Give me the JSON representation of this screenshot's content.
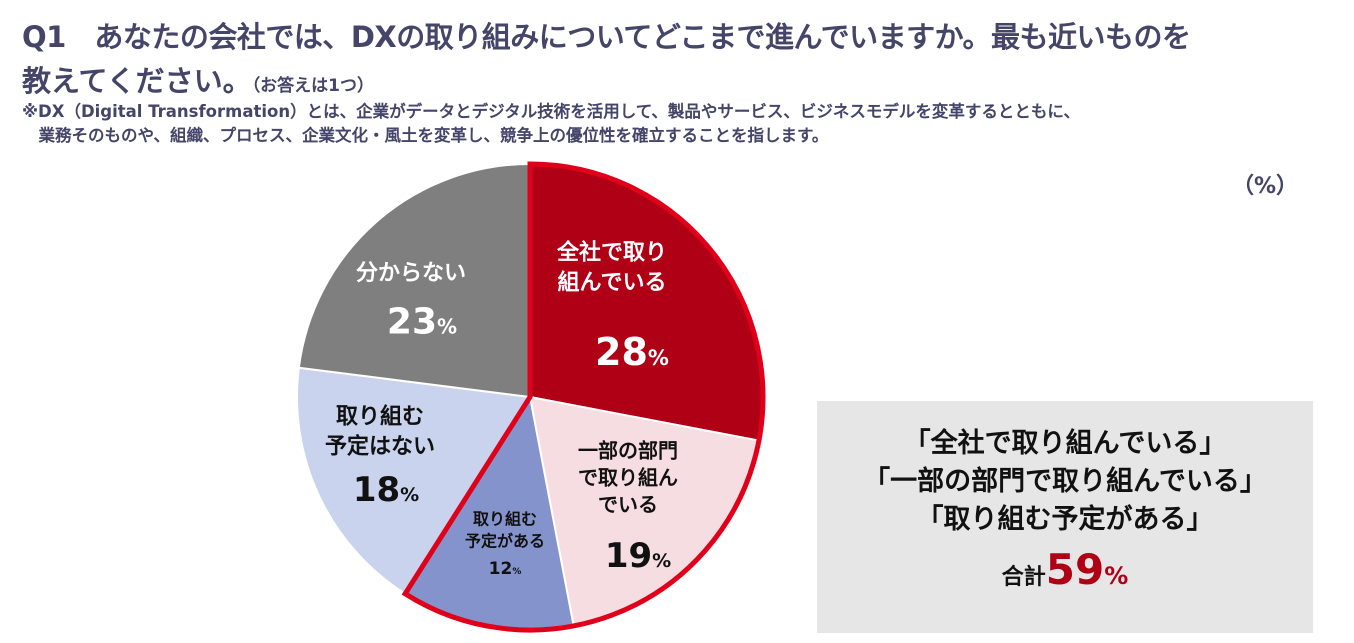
{
  "header": {
    "title_line1": "Q1　あなたの会社では、DXの取り組みについてどこまで進んでいますか。最も近いものを",
    "title_line2": "教えてください。",
    "title_note": "（お答えは1つ）",
    "definition_line1": "※DX（Digital Transformation）とは、企業がデータとデジタル技術を活用して、製品やサービス、ビジネスモデルを変革するとともに、",
    "definition_line2": "　業務そのものや、組織、プロセス、企業文化・風土を変革し、競争上の優位性を確立することを指します。",
    "unit": "（%）"
  },
  "chart_data": {
    "type": "pie",
    "unit": "%",
    "start": "top, clockwise",
    "slices": [
      {
        "label": "全社で取り組んでいる",
        "display": "全社で取り\n組んでいる",
        "value": 28,
        "color": "#b00016",
        "text_color": "#ffffff"
      },
      {
        "label": "一部の部門で取り組んでいる",
        "display": "一部の部門\nで取り組ん\nでいる",
        "value": 19,
        "color": "#f5dde1",
        "text_color": "#111111"
      },
      {
        "label": "取り組む予定がある",
        "display": "取り組む\n予定がある",
        "value": 12,
        "color": "#8593cc",
        "text_color": "#111111"
      },
      {
        "label": "取り組む予定はない",
        "display": "取り組む\n予定はない",
        "value": 18,
        "color": "#c9d3ee",
        "text_color": "#111111"
      },
      {
        "label": "分からない",
        "display": "分からない",
        "value": 23,
        "color": "#7f7f7f",
        "text_color": "#ffffff"
      }
    ],
    "highlight_outline_color": "#e0001a",
    "highlight_slices": [
      0,
      1,
      2
    ]
  },
  "summary": {
    "lines": [
      "「全社で取り組んでいる」",
      "「一部の部門で取り組んでいる」",
      "「取り組む予定がある」"
    ],
    "total_label": "合計",
    "total_value": "59",
    "total_unit": "%"
  }
}
